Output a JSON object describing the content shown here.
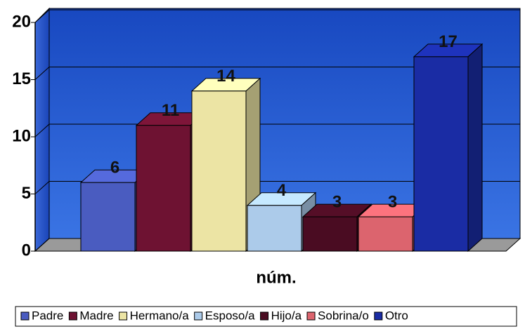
{
  "chart_data": {
    "type": "bar3d",
    "categories": [
      "núm."
    ],
    "series": [
      {
        "name": "Padre",
        "color": "#4a5cc0",
        "values": [
          6
        ]
      },
      {
        "name": "Madre",
        "color": "#6e1232",
        "values": [
          11
        ]
      },
      {
        "name": "Hermano/a",
        "color": "#ece4a4",
        "values": [
          14
        ]
      },
      {
        "name": "Esposo/a",
        "color": "#accbea",
        "values": [
          4
        ]
      },
      {
        "name": "Hijo/a",
        "color": "#4a0c22",
        "values": [
          3
        ]
      },
      {
        "name": "Sobrina/o",
        "color": "#dc646e",
        "values": [
          3
        ]
      },
      {
        "name": "Otro",
        "color": "#1a2ca4",
        "values": [
          17
        ]
      }
    ],
    "ylim": [
      0,
      20
    ],
    "yticks": [
      0,
      5,
      10,
      15,
      20
    ],
    "grid": true,
    "legend": "bottom"
  }
}
